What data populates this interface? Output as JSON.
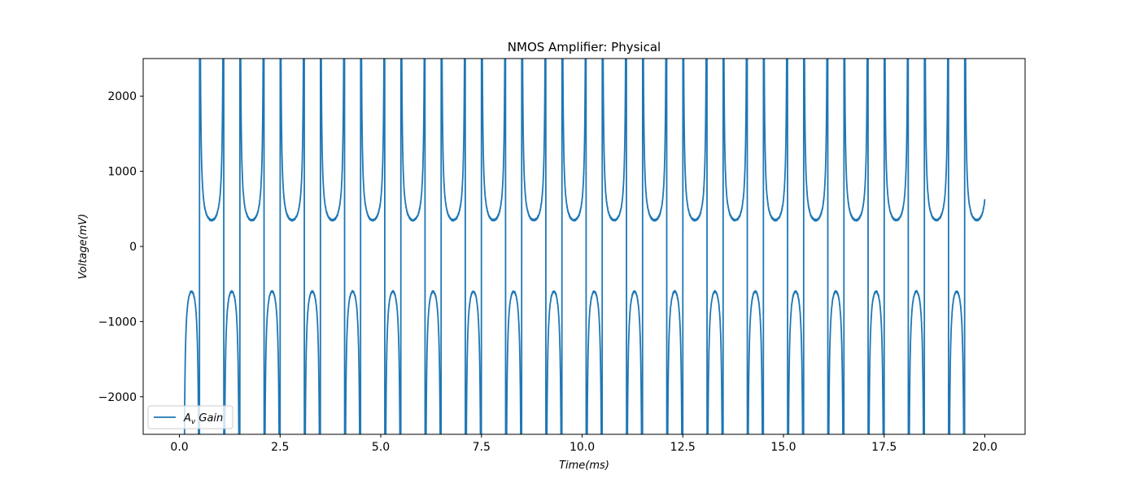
{
  "chart_data": {
    "type": "line",
    "title": "NMOS Amplifier: Physical",
    "xlabel": "Time(ms)",
    "ylabel": "Voltage(mV)",
    "xlim": [
      -0.9,
      21.0
    ],
    "ylim": [
      -2500,
      2500
    ],
    "x_ticks": [
      0.0,
      2.5,
      5.0,
      7.5,
      10.0,
      12.5,
      15.0,
      17.5,
      20.0
    ],
    "x_tick_labels": [
      "0.0",
      "2.5",
      "5.0",
      "7.5",
      "10.0",
      "12.5",
      "15.0",
      "17.5",
      "20.0"
    ],
    "y_ticks": [
      -2000,
      -1000,
      0,
      1000,
      2000
    ],
    "y_tick_labels": [
      "−2000",
      "−1000",
      "0",
      "1000",
      "2000"
    ],
    "grid": false,
    "legend_position": "lower-left",
    "series": [
      {
        "name_main": "A",
        "name_sub": "v",
        "name_rest": " Gain",
        "color": "#1f77b4",
        "x_start": 0.1,
        "x_end": 20.0,
        "period_ms": 1.0,
        "negative_lobe": {
          "start_offset_ms": 0.0,
          "end_offset_ms": 0.4,
          "peak_offset_ms": 0.2,
          "peak_mV": -600
        },
        "positive_lobe": {
          "start_offset_ms": 0.4,
          "end_offset_ms": 1.0,
          "min_offset_ms": 0.7,
          "min_mV": 350
        }
      }
    ]
  }
}
